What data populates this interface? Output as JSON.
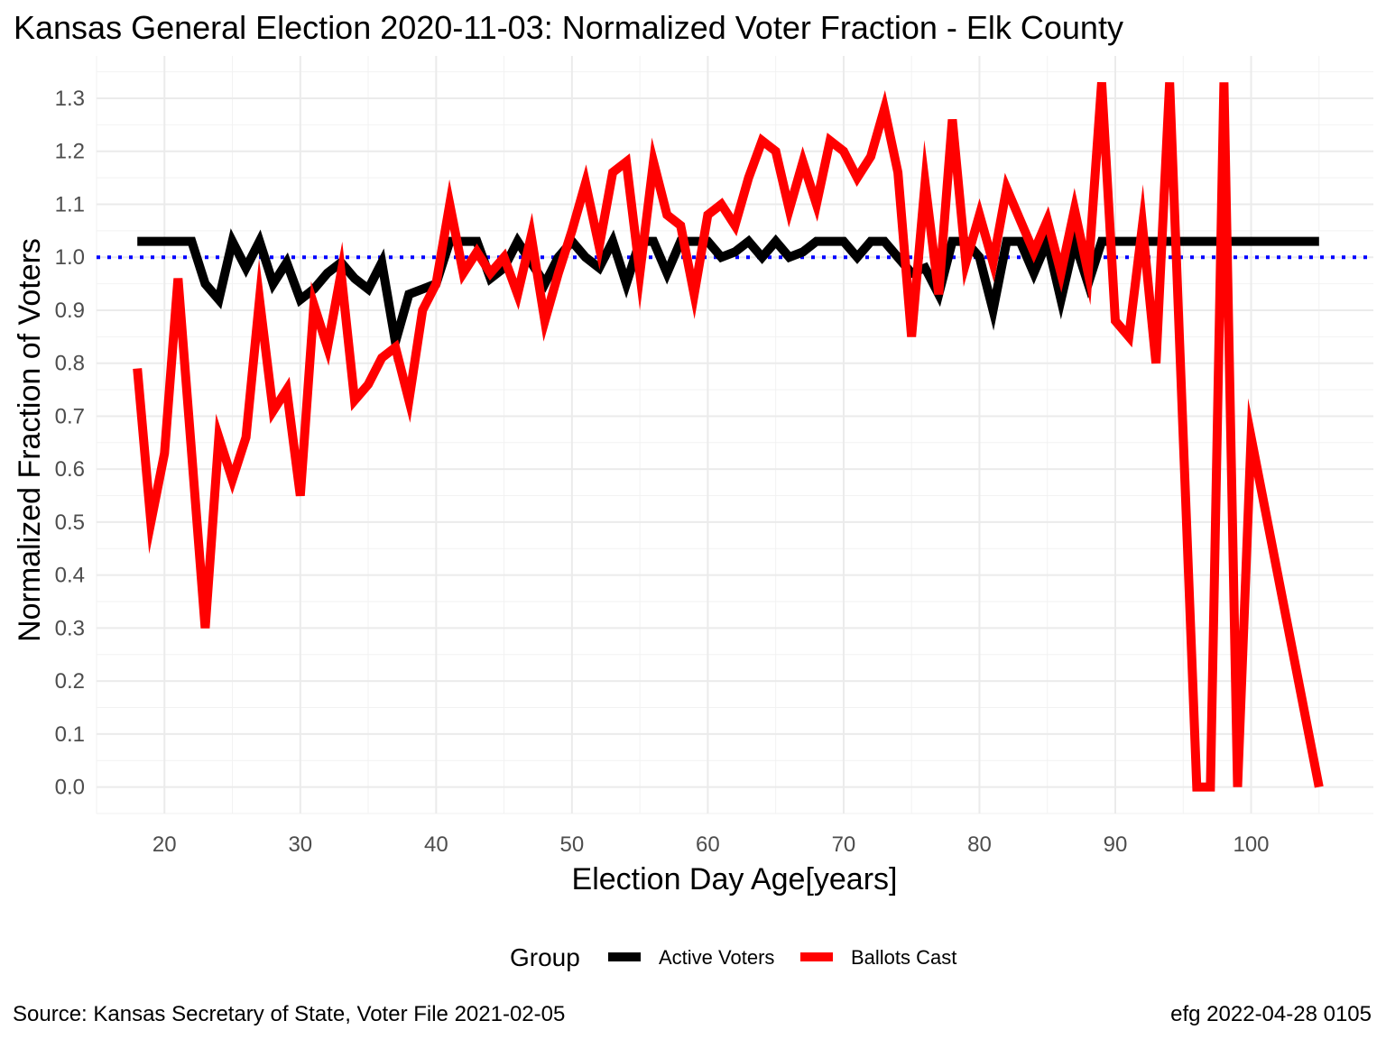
{
  "chart_data": {
    "type": "line",
    "title": "Kansas General Election 2020-11-03:  Normalized Voter Fraction - Elk County",
    "xlabel": "Election Day Age[years]",
    "ylabel": "Normalized Fraction of Voters",
    "xlim": [
      15,
      109
    ],
    "ylim": [
      -0.05,
      1.38
    ],
    "x_ticks": [
      20,
      30,
      40,
      50,
      60,
      70,
      80,
      90,
      100
    ],
    "y_ticks": [
      0.0,
      0.1,
      0.2,
      0.3,
      0.4,
      0.5,
      0.6,
      0.7,
      0.8,
      0.9,
      1.0,
      1.1,
      1.2,
      1.3
    ],
    "y_tick_labels": [
      "0.0",
      "0.1",
      "0.2",
      "0.3",
      "0.4",
      "0.5",
      "0.6",
      "0.7",
      "0.8",
      "0.9",
      "1.0",
      "1.1",
      "1.2",
      "1.3"
    ],
    "grid": true,
    "reference_line": {
      "y": 1.0,
      "color": "#0000ff",
      "style": "dotted"
    },
    "legend": {
      "title": "Group",
      "position": "bottom",
      "entries": [
        {
          "label": "Active Voters",
          "color": "#000000"
        },
        {
          "label": "Ballots Cast",
          "color": "#ff0000"
        }
      ]
    },
    "series": [
      {
        "name": "Active Voters",
        "color": "#000000",
        "points": [
          [
            18,
            1.03
          ],
          [
            19,
            1.03
          ],
          [
            20,
            1.03
          ],
          [
            21,
            1.03
          ],
          [
            22,
            1.03
          ],
          [
            23,
            0.95
          ],
          [
            24,
            0.92
          ],
          [
            25,
            1.03
          ],
          [
            26,
            0.98
          ],
          [
            27,
            1.03
          ],
          [
            28,
            0.95
          ],
          [
            29,
            0.99
          ],
          [
            30,
            0.92
          ],
          [
            31,
            0.94
          ],
          [
            32,
            0.97
          ],
          [
            33,
            0.99
          ],
          [
            34,
            0.96
          ],
          [
            35,
            0.94
          ],
          [
            36,
            0.99
          ],
          [
            37,
            0.84
          ],
          [
            38,
            0.93
          ],
          [
            39,
            0.94
          ],
          [
            40,
            0.95
          ],
          [
            41,
            1.03
          ],
          [
            42,
            1.03
          ],
          [
            43,
            1.03
          ],
          [
            44,
            0.96
          ],
          [
            45,
            0.98
          ],
          [
            46,
            1.03
          ],
          [
            47,
            0.99
          ],
          [
            48,
            0.95
          ],
          [
            49,
            1.0
          ],
          [
            50,
            1.03
          ],
          [
            51,
            1.0
          ],
          [
            52,
            0.98
          ],
          [
            53,
            1.03
          ],
          [
            54,
            0.95
          ],
          [
            55,
            1.03
          ],
          [
            56,
            1.03
          ],
          [
            57,
            0.97
          ],
          [
            58,
            1.03
          ],
          [
            59,
            1.03
          ],
          [
            60,
            1.03
          ],
          [
            61,
            1.0
          ],
          [
            62,
            1.01
          ],
          [
            63,
            1.03
          ],
          [
            64,
            1.0
          ],
          [
            65,
            1.03
          ],
          [
            66,
            1.0
          ],
          [
            67,
            1.01
          ],
          [
            68,
            1.03
          ],
          [
            69,
            1.03
          ],
          [
            70,
            1.03
          ],
          [
            71,
            1.0
          ],
          [
            72,
            1.03
          ],
          [
            73,
            1.03
          ],
          [
            74,
            1.0
          ],
          [
            75,
            0.97
          ],
          [
            76,
            0.98
          ],
          [
            77,
            0.93
          ],
          [
            78,
            1.03
          ],
          [
            79,
            1.03
          ],
          [
            80,
            1.0
          ],
          [
            81,
            0.9
          ],
          [
            82,
            1.03
          ],
          [
            83,
            1.03
          ],
          [
            84,
            0.97
          ],
          [
            85,
            1.03
          ],
          [
            86,
            0.92
          ],
          [
            87,
            1.03
          ],
          [
            88,
            0.95
          ],
          [
            89,
            1.03
          ],
          [
            90,
            1.03
          ],
          [
            91,
            1.03
          ],
          [
            92,
            1.03
          ],
          [
            93,
            1.03
          ],
          [
            94,
            1.03
          ],
          [
            95,
            1.03
          ],
          [
            96,
            1.03
          ],
          [
            97,
            1.03
          ],
          [
            98,
            1.03
          ],
          [
            99,
            1.03
          ],
          [
            100,
            1.03
          ],
          [
            101,
            1.03
          ],
          [
            102,
            1.03
          ],
          [
            103,
            1.03
          ],
          [
            104,
            1.03
          ],
          [
            105,
            1.03
          ]
        ]
      },
      {
        "name": "Ballots Cast",
        "color": "#ff0000",
        "points": [
          [
            18,
            0.79
          ],
          [
            19,
            0.5
          ],
          [
            20,
            0.63
          ],
          [
            21,
            0.96
          ],
          [
            22,
            0.63
          ],
          [
            23,
            0.3
          ],
          [
            24,
            0.66
          ],
          [
            25,
            0.58
          ],
          [
            26,
            0.66
          ],
          [
            27,
            0.92
          ],
          [
            28,
            0.71
          ],
          [
            29,
            0.75
          ],
          [
            30,
            0.55
          ],
          [
            31,
            0.91
          ],
          [
            32,
            0.83
          ],
          [
            33,
            0.97
          ],
          [
            34,
            0.73
          ],
          [
            35,
            0.76
          ],
          [
            36,
            0.81
          ],
          [
            37,
            0.83
          ],
          [
            38,
            0.73
          ],
          [
            39,
            0.9
          ],
          [
            40,
            0.95
          ],
          [
            41,
            1.1
          ],
          [
            42,
            0.97
          ],
          [
            43,
            1.01
          ],
          [
            44,
            0.97
          ],
          [
            45,
            1.0
          ],
          [
            46,
            0.93
          ],
          [
            47,
            1.04
          ],
          [
            48,
            0.88
          ],
          [
            49,
            0.97
          ],
          [
            50,
            1.05
          ],
          [
            51,
            1.14
          ],
          [
            52,
            1.02
          ],
          [
            53,
            1.16
          ],
          [
            54,
            1.18
          ],
          [
            55,
            0.97
          ],
          [
            56,
            1.18
          ],
          [
            57,
            1.08
          ],
          [
            58,
            1.06
          ],
          [
            59,
            0.93
          ],
          [
            60,
            1.08
          ],
          [
            61,
            1.1
          ],
          [
            62,
            1.06
          ],
          [
            63,
            1.15
          ],
          [
            64,
            1.22
          ],
          [
            65,
            1.2
          ],
          [
            66,
            1.09
          ],
          [
            67,
            1.18
          ],
          [
            68,
            1.1
          ],
          [
            69,
            1.22
          ],
          [
            70,
            1.2
          ],
          [
            71,
            1.15
          ],
          [
            72,
            1.19
          ],
          [
            73,
            1.28
          ],
          [
            74,
            1.16
          ],
          [
            75,
            0.85
          ],
          [
            76,
            1.14
          ],
          [
            77,
            0.93
          ],
          [
            78,
            1.26
          ],
          [
            79,
            0.99
          ],
          [
            80,
            1.08
          ],
          [
            81,
            0.99
          ],
          [
            82,
            1.13
          ],
          [
            83,
            1.07
          ],
          [
            84,
            1.01
          ],
          [
            85,
            1.07
          ],
          [
            86,
            0.97
          ],
          [
            87,
            1.09
          ],
          [
            88,
            0.97
          ],
          [
            89,
            1.33
          ],
          [
            90,
            0.88
          ],
          [
            91,
            0.85
          ],
          [
            92,
            1.06
          ],
          [
            93,
            0.8
          ],
          [
            94,
            1.33
          ],
          [
            95,
            0.66
          ],
          [
            96,
            0.0
          ],
          [
            97,
            0.0
          ],
          [
            98,
            1.33
          ],
          [
            99,
            0.0
          ],
          [
            100,
            0.66
          ],
          [
            105,
            0.0
          ]
        ]
      }
    ]
  },
  "footer": {
    "source": "Source:  Kansas Secretary of State, Voter File  2021-02-05",
    "credit": "efg 2022-04-28 0105"
  }
}
